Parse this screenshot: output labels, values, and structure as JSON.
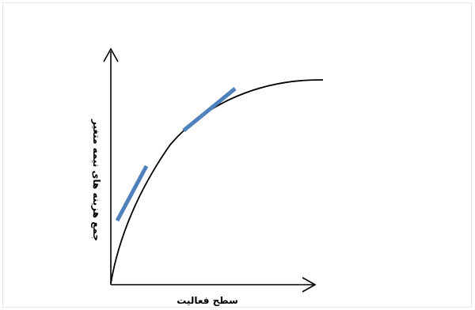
{
  "diagram": {
    "x_axis_label": "سطح فعالیت",
    "y_axis_label": "جمع هزینه های نیمه متغیر",
    "colors": {
      "axis": "#000000",
      "curve": "#000000",
      "tangent": "#4f81bd"
    }
  }
}
